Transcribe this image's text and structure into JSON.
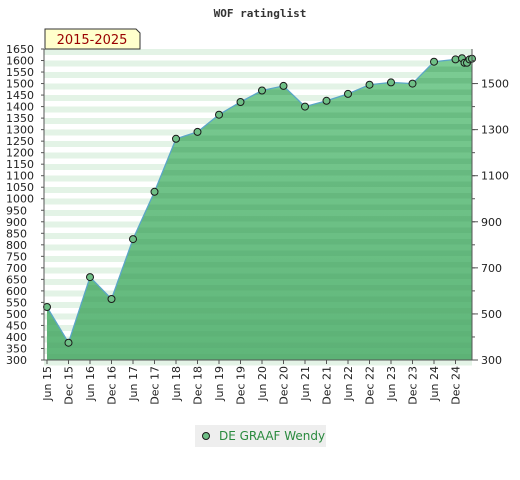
{
  "chart_data": {
    "type": "area",
    "title": "WOF ratinglist",
    "period_badge": "2015-2025",
    "xlabel": "",
    "ylabel": "",
    "ylim": [
      300,
      1650
    ],
    "left_axis_ticks": [
      300,
      350,
      400,
      450,
      500,
      550,
      600,
      650,
      700,
      750,
      800,
      850,
      900,
      950,
      1000,
      1050,
      1100,
      1150,
      1200,
      1250,
      1300,
      1350,
      1400,
      1450,
      1500,
      1550,
      1600,
      1650
    ],
    "right_axis_ticks": [
      300,
      500,
      700,
      900,
      1100,
      1300,
      1500
    ],
    "right_axis_labels": [
      "300",
      "500",
      "700",
      "900",
      "1100",
      "1300",
      "1500"
    ],
    "x_tick_labels": [
      "Jun 15",
      "Dec 15",
      "Jun 16",
      "Dec 16",
      "Jun 17",
      "Dec 17",
      "Jun 18",
      "Dec 18",
      "Jun 19",
      "Dec 19",
      "Jun 20",
      "Dec 20",
      "Jun 21",
      "Dec 21",
      "Jun 22",
      "Dec 22",
      "Jun 23",
      "Dec 23",
      "Jun 24",
      "Dec 24"
    ],
    "grid": true,
    "legend_position": "bottom-center",
    "series": [
      {
        "name": "DE GRAAF Wendy",
        "color": "#2a8a3e",
        "x": [
          "Jun 15",
          "Dec 15",
          "Jun 16",
          "Dec 16",
          "Jun 17",
          "Dec 17",
          "Jun 18",
          "Dec 18",
          "Jun 19",
          "Dec 19",
          "Jun 20",
          "Dec 20",
          "Jun 21",
          "Dec 21",
          "Jun 22",
          "Dec 22",
          "Jun 23",
          "Dec 23",
          "Jun 24",
          "Dec 24",
          "Jan 25",
          "Feb 25",
          "Mar 25",
          "Apr 25",
          "May 25"
        ],
        "values": [
          530,
          375,
          660,
          565,
          825,
          1030,
          1260,
          1290,
          1365,
          1420,
          1470,
          1490,
          1400,
          1425,
          1455,
          1495,
          1505,
          1500,
          1595,
          1605,
          1610,
          1590,
          1590,
          1605,
          1608
        ]
      }
    ]
  },
  "colors": {
    "plot_background": "#e8f5ea",
    "area_fill": "#6fbf86",
    "line": "#5ba6c7",
    "marker_fill": "#6fbf86",
    "badge_fill": "#ffffcc",
    "badge_text": "#990000"
  }
}
